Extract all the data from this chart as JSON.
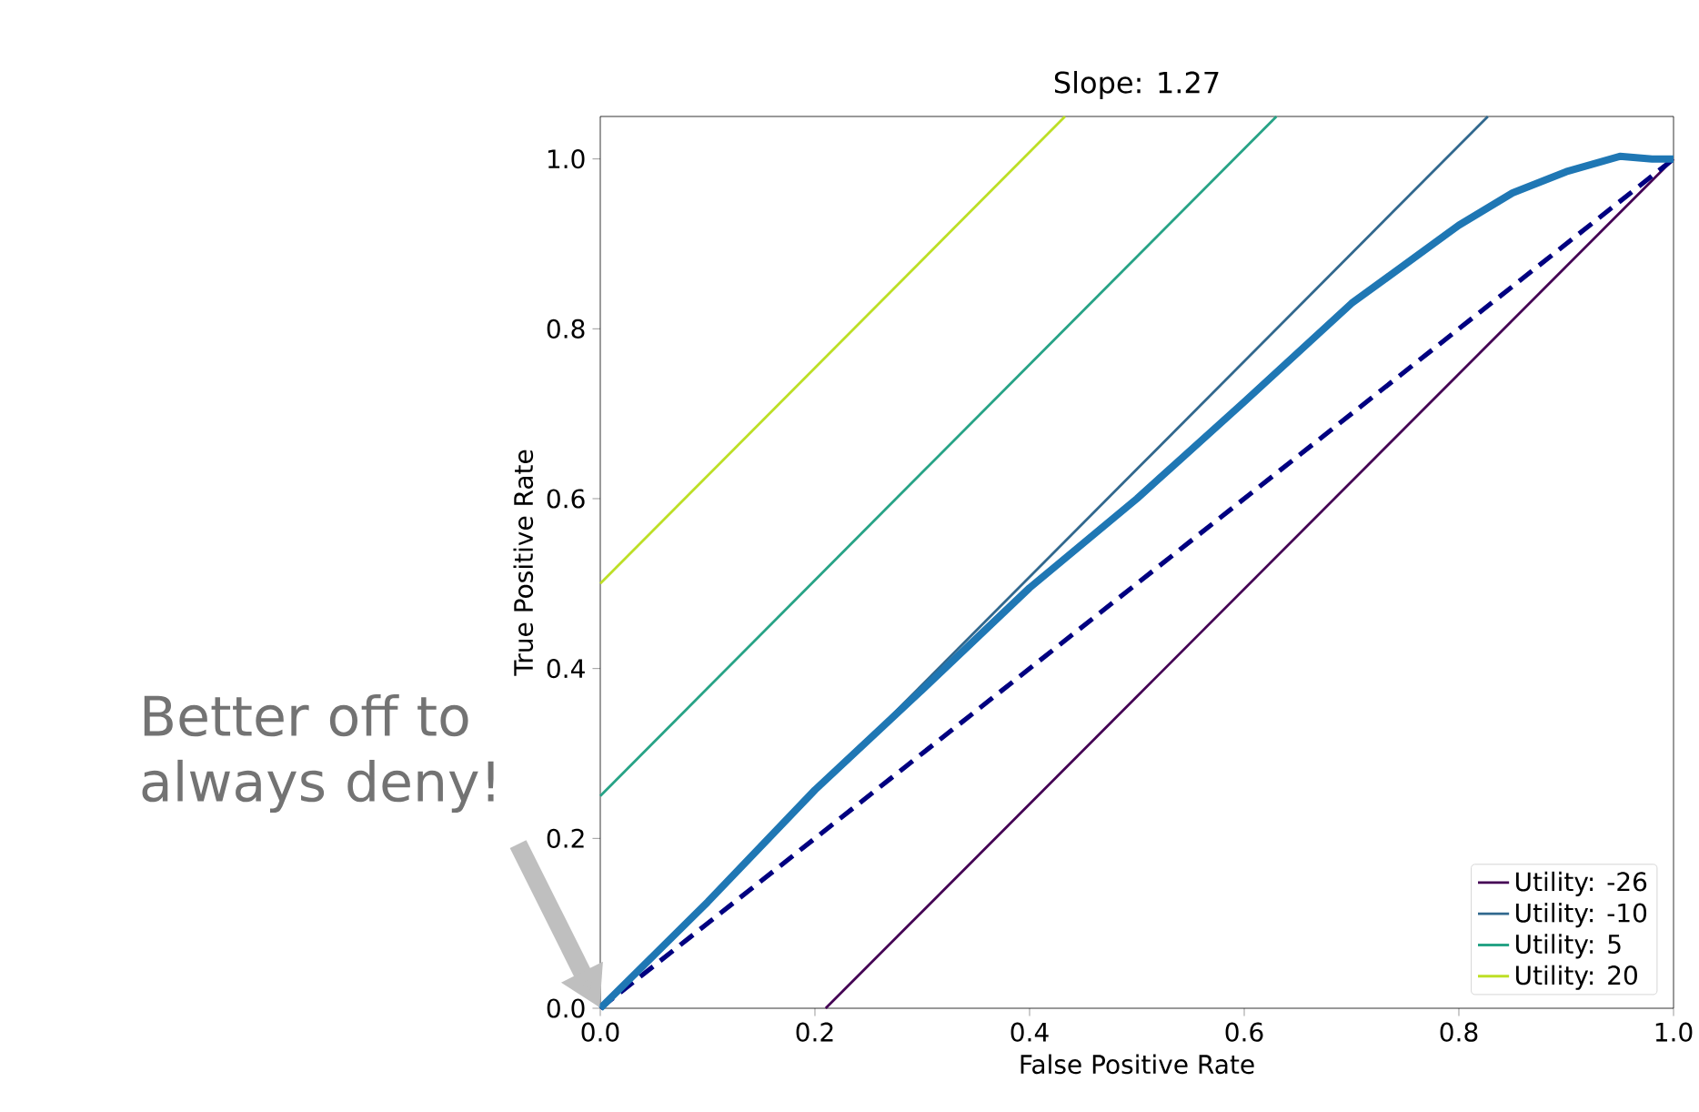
{
  "chart_data": {
    "type": "line",
    "title": "Slope: 1.27",
    "xlabel": "False Positive Rate",
    "ylabel": "True Positive Rate",
    "xlim": [
      0,
      1
    ],
    "ylim": [
      0,
      1.05
    ],
    "xticks": [
      {
        "value": 0,
        "label": "0.0"
      },
      0.2,
      0.4,
      0.6,
      0.8,
      {
        "value": 1,
        "label": "1.0"
      }
    ],
    "yticks": [
      {
        "value": 0,
        "label": "0.0"
      },
      0.2,
      0.4,
      0.6,
      0.8,
      {
        "value": 1,
        "label": "1.0"
      }
    ],
    "legend": "bottom right",
    "marker": "none",
    "series": [
      {
        "name": "Utility: -26",
        "color": "#440154",
        "x": [
          0.21,
          1
        ],
        "values": [
          0,
          1
        ]
      },
      {
        "name": "Utility: -10",
        "color": "#31688e",
        "x": [
          0,
          0.827
        ],
        "values": [
          0,
          1.05
        ]
      },
      {
        "name": "Utility: 5",
        "color": "#27a386",
        "x": [
          0,
          0.63
        ],
        "values": [
          0.25,
          1.05
        ]
      },
      {
        "name": "Utility: 20",
        "color": "#bddf26",
        "x": [
          0,
          0.433
        ],
        "values": [
          0.5,
          1.05
        ]
      },
      {
        "color": "#000080",
        "line_style": "dashed",
        "x": [
          0,
          1
        ],
        "values": [
          0,
          1
        ]
      },
      {
        "color": "#1f77b4",
        "x": [
          0,
          0.1,
          0.2,
          0.3,
          0.4,
          0.5,
          0.6,
          0.7,
          0.8,
          0.85,
          0.9,
          0.95,
          0.98,
          1
        ],
        "values": [
          0,
          0.125,
          0.257,
          0.375,
          0.495,
          0.6,
          0.714,
          0.83,
          0.922,
          0.96,
          0.985,
          1.003,
          1.0,
          1.0
        ]
      }
    ],
    "annotations": [
      "Better off to always deny!"
    ]
  }
}
